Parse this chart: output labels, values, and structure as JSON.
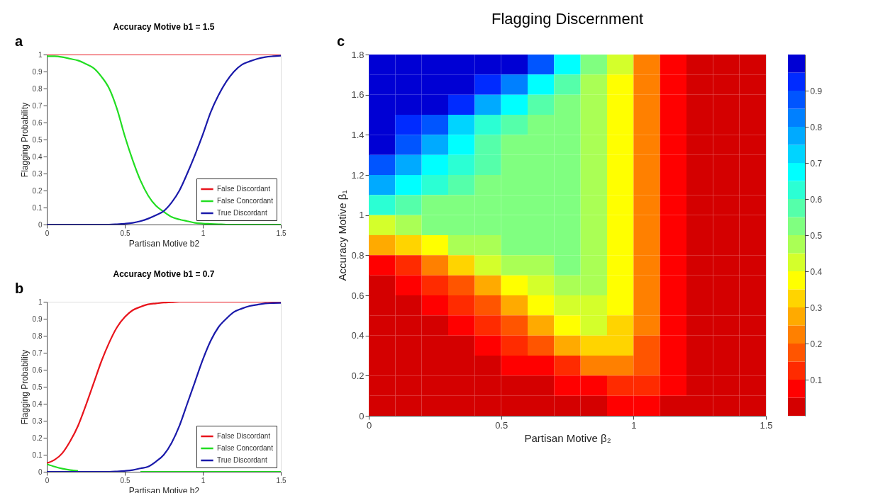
{
  "chart_data": [
    {
      "type": "line",
      "title": "Accuracy Motive b1 = 1.5",
      "xlabel": "Partisan Motive b2",
      "ylabel": "Flagging Probability",
      "annotations": [
        "a"
      ],
      "legend": "bottom right",
      "x": [
        0,
        0.05,
        0.1,
        0.15,
        0.2,
        0.25,
        0.3,
        0.35,
        0.4,
        0.45,
        0.5,
        0.55,
        0.6,
        0.65,
        0.7,
        0.75,
        0.8,
        0.85,
        0.9,
        0.95,
        1.0,
        1.05,
        1.1,
        1.15,
        1.2,
        1.25,
        1.3,
        1.35,
        1.4,
        1.45,
        1.5
      ],
      "series": [
        {
          "name": "False Discordant",
          "color": "#e8141c",
          "values": [
            1,
            1,
            1,
            1,
            1,
            1,
            1,
            1,
            1,
            1,
            1,
            1,
            1,
            1,
            1,
            1,
            1,
            1,
            1,
            1,
            1,
            1,
            1,
            1,
            1,
            1,
            1,
            1,
            1,
            1,
            1
          ]
        },
        {
          "name": "False Concordant",
          "color": "#22dd22",
          "values": [
            0.99,
            0.99,
            0.985,
            0.975,
            0.965,
            0.945,
            0.92,
            0.87,
            0.8,
            0.68,
            0.52,
            0.38,
            0.26,
            0.17,
            0.11,
            0.075,
            0.045,
            0.03,
            0.02,
            0.01,
            0.006,
            0.004,
            0.002,
            0,
            0,
            0,
            0,
            0,
            0,
            0,
            0
          ]
        },
        {
          "name": "True Discordant",
          "color": "#1a1aaa",
          "values": [
            0,
            0,
            0,
            0,
            0,
            0,
            0,
            0,
            0,
            0.002,
            0.005,
            0.01,
            0.02,
            0.035,
            0.055,
            0.08,
            0.13,
            0.2,
            0.3,
            0.41,
            0.53,
            0.66,
            0.76,
            0.84,
            0.9,
            0.94,
            0.96,
            0.975,
            0.985,
            0.99,
            0.993
          ]
        }
      ],
      "xlim": [
        0,
        1.5
      ],
      "xticks": [
        0,
        0.5,
        1,
        1.5
      ],
      "ylim": [
        0,
        1
      ],
      "yticks": [
        0,
        0.1,
        0.2,
        0.3,
        0.4,
        0.5,
        0.6,
        0.7,
        0.8,
        0.9,
        1
      ]
    },
    {
      "type": "line",
      "title": "Accuracy Motive b1 = 0.7",
      "xlabel": "Partisan Motive b2",
      "ylabel": "Flagging Probability",
      "annotations": [
        "b"
      ],
      "legend": "bottom right",
      "x": [
        0,
        0.05,
        0.1,
        0.15,
        0.2,
        0.25,
        0.3,
        0.35,
        0.4,
        0.45,
        0.5,
        0.55,
        0.6,
        0.65,
        0.7,
        0.75,
        0.8,
        0.85,
        0.9,
        0.95,
        1.0,
        1.05,
        1.1,
        1.15,
        1.2,
        1.25,
        1.3,
        1.35,
        1.4,
        1.45,
        1.5
      ],
      "series": [
        {
          "name": "False Discordant",
          "color": "#e8141c",
          "values": [
            0.05,
            0.07,
            0.11,
            0.18,
            0.27,
            0.39,
            0.52,
            0.65,
            0.76,
            0.85,
            0.91,
            0.95,
            0.97,
            0.985,
            0.99,
            0.995,
            0.997,
            1,
            1,
            1,
            1,
            1,
            1,
            1,
            1,
            1,
            1,
            1,
            1,
            1,
            1
          ]
        },
        {
          "name": "False Concordant",
          "color": "#22dd22",
          "values": [
            0.045,
            0.03,
            0.018,
            0.01,
            0.005,
            null,
            null,
            null,
            null,
            null,
            null,
            null,
            0,
            0,
            0,
            0,
            0,
            0,
            0,
            0,
            0,
            0,
            0,
            0,
            0,
            0,
            0,
            0,
            0,
            0,
            0
          ]
        },
        {
          "name": "True Discordant",
          "color": "#1a1aaa",
          "values": [
            0,
            0,
            0,
            0,
            0,
            0,
            0,
            0,
            0,
            0.002,
            0.005,
            0.01,
            0.02,
            0.03,
            0.06,
            0.1,
            0.17,
            0.27,
            0.4,
            0.53,
            0.66,
            0.77,
            0.85,
            0.9,
            0.94,
            0.96,
            0.975,
            0.983,
            0.99,
            0.992,
            0.993
          ]
        }
      ],
      "xlim": [
        0,
        1.5
      ],
      "xticks": [
        0,
        0.5,
        1,
        1.5
      ],
      "ylim": [
        0,
        1
      ],
      "yticks": [
        0,
        0.1,
        0.2,
        0.3,
        0.4,
        0.5,
        0.6,
        0.7,
        0.8,
        0.9,
        1
      ]
    },
    {
      "type": "heatmap",
      "title": "Flagging Discernment",
      "xlabel": "Partisan Motive β₂",
      "ylabel": "Accuracy Motive β₁",
      "annotations": [
        "c"
      ],
      "x": [
        0.05,
        0.15,
        0.25,
        0.35,
        0.45,
        0.55,
        0.65,
        0.75,
        0.85,
        0.95,
        1.05,
        1.15,
        1.25,
        1.35,
        1.45
      ],
      "y": [
        1.75,
        1.65,
        1.55,
        1.45,
        1.35,
        1.25,
        1.15,
        1.05,
        0.95,
        0.85,
        0.75,
        0.65,
        0.55,
        0.45,
        0.35,
        0.25,
        0.15,
        0.05
      ],
      "cells": [
        [
          0.97,
          0.97,
          0.97,
          0.97,
          0.97,
          0.97,
          0.85,
          0.68,
          0.5,
          0.4,
          0.22,
          0.07,
          0.02,
          0.02,
          0.02
        ],
        [
          0.97,
          0.97,
          0.97,
          0.97,
          0.93,
          0.82,
          0.68,
          0.56,
          0.48,
          0.38,
          0.22,
          0.07,
          0.02,
          0.02,
          0.02
        ],
        [
          0.97,
          0.97,
          0.97,
          0.9,
          0.78,
          0.65,
          0.55,
          0.52,
          0.47,
          0.38,
          0.22,
          0.07,
          0.02,
          0.02,
          0.02
        ],
        [
          0.97,
          0.93,
          0.85,
          0.72,
          0.62,
          0.55,
          0.52,
          0.52,
          0.47,
          0.38,
          0.22,
          0.07,
          0.02,
          0.02,
          0.02
        ],
        [
          0.96,
          0.88,
          0.76,
          0.65,
          0.57,
          0.53,
          0.52,
          0.52,
          0.47,
          0.37,
          0.22,
          0.07,
          0.02,
          0.02,
          0.02
        ],
        [
          0.88,
          0.78,
          0.68,
          0.6,
          0.55,
          0.52,
          0.52,
          0.52,
          0.47,
          0.36,
          0.2,
          0.07,
          0.02,
          0.02,
          0.02
        ],
        [
          0.77,
          0.68,
          0.6,
          0.56,
          0.53,
          0.52,
          0.52,
          0.52,
          0.46,
          0.35,
          0.2,
          0.07,
          0.02,
          0.02,
          0.02
        ],
        [
          0.62,
          0.57,
          0.54,
          0.52,
          0.52,
          0.52,
          0.52,
          0.52,
          0.45,
          0.35,
          0.2,
          0.07,
          0.02,
          0.02,
          0.02
        ],
        [
          0.42,
          0.47,
          0.5,
          0.52,
          0.52,
          0.52,
          0.52,
          0.52,
          0.45,
          0.35,
          0.2,
          0.07,
          0.02,
          0.02,
          0.02
        ],
        [
          0.25,
          0.3,
          0.38,
          0.45,
          0.48,
          0.52,
          0.52,
          0.52,
          0.45,
          0.35,
          0.2,
          0.07,
          0.02,
          0.02,
          0.02
        ],
        [
          0.08,
          0.12,
          0.2,
          0.3,
          0.4,
          0.45,
          0.48,
          0.52,
          0.45,
          0.35,
          0.2,
          0.07,
          0.02,
          0.02,
          0.02
        ],
        [
          0.02,
          0.06,
          0.1,
          0.18,
          0.28,
          0.38,
          0.44,
          0.47,
          0.45,
          0.35,
          0.2,
          0.07,
          0.02,
          0.02,
          0.02
        ],
        [
          0.02,
          0.02,
          0.06,
          0.1,
          0.17,
          0.27,
          0.37,
          0.43,
          0.42,
          0.35,
          0.2,
          0.07,
          0.02,
          0.02,
          0.02
        ],
        [
          0.02,
          0.02,
          0.02,
          0.06,
          0.1,
          0.17,
          0.25,
          0.35,
          0.4,
          0.33,
          0.2,
          0.07,
          0.02,
          0.02,
          0.02
        ],
        [
          0.02,
          0.02,
          0.02,
          0.02,
          0.06,
          0.1,
          0.16,
          0.25,
          0.33,
          0.3,
          0.18,
          0.07,
          0.02,
          0.02,
          0.02
        ],
        [
          0.02,
          0.02,
          0.02,
          0.02,
          0.02,
          0.06,
          0.08,
          0.13,
          0.2,
          0.22,
          0.15,
          0.06,
          0.02,
          0.02,
          0.02
        ],
        [
          0.02,
          0.02,
          0.02,
          0.02,
          0.02,
          0.02,
          0.02,
          0.06,
          0.08,
          0.12,
          0.1,
          0.05,
          0.02,
          0.02,
          0.02
        ],
        [
          0.02,
          0.02,
          0.02,
          0.02,
          0.02,
          0.02,
          0.02,
          0.02,
          0.02,
          0.06,
          0.06,
          0.02,
          0.02,
          0.02,
          0.02
        ]
      ],
      "colors": [
        "#d40000",
        "#ff0000",
        "#ff2b00",
        "#ff5500",
        "#ff8000",
        "#ffaa00",
        "#ffd400",
        "#ffff00",
        "#d4ff2b",
        "#aaff55",
        "#80ff80",
        "#55ffaa",
        "#2bffd4",
        "#00ffff",
        "#00d4ff",
        "#00aaff",
        "#0080ff",
        "#0055ff",
        "#002bff",
        "#0000d4"
      ],
      "clim": [
        0,
        1
      ],
      "cticks": [
        0.1,
        0.2,
        0.3,
        0.4,
        0.5,
        0.6,
        0.7,
        0.8,
        0.9
      ],
      "xlim": [
        0,
        1.5
      ],
      "xticks": [
        0,
        0.5,
        1,
        1.5
      ],
      "ylim": [
        0,
        1.8
      ],
      "yticks": [
        0,
        0.2,
        0.4,
        0.6,
        0.8,
        1,
        1.2,
        1.4,
        1.6,
        1.8
      ]
    }
  ]
}
